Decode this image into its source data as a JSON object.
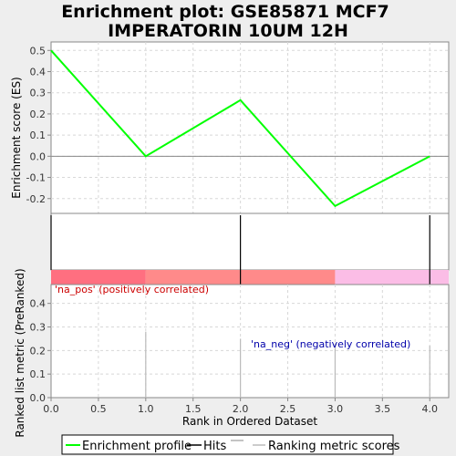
{
  "chart_data": {
    "type": "line",
    "title_lines": [
      "Enrichment plot: GSE85871 MCF7",
      "IMPERATORIN 10UM 12H"
    ],
    "xlabel": "Rank in Ordered Dataset",
    "xlim": [
      0,
      4.2
    ],
    "x_ticks": [
      0.0,
      0.5,
      1.0,
      1.5,
      2.0,
      2.5,
      3.0,
      3.5,
      4.0
    ],
    "x_tick_labels": [
      "0.0",
      "0.5",
      "1.0",
      "1.5",
      "2.0",
      "2.5",
      "3.0",
      "3.5",
      "4.0"
    ],
    "es_panel": {
      "ylabel": "Enrichment score (ES)",
      "ylim": [
        -0.27,
        0.54
      ],
      "y_ticks": [
        -0.2,
        -0.1,
        0.0,
        0.1,
        0.2,
        0.3,
        0.4,
        0.5
      ],
      "y_tick_labels": [
        "-0.2",
        "-0.1",
        "0.0",
        "0.1",
        "0.2",
        "0.3",
        "0.4",
        "0.5"
      ],
      "series": [
        {
          "name": "Enrichment profile",
          "color": "#00ff00",
          "x": [
            0,
            1,
            2,
            3,
            4
          ],
          "y": [
            0.5,
            0.0,
            0.265,
            -0.235,
            0.0
          ]
        }
      ]
    },
    "hits": {
      "x": [
        0,
        2,
        4
      ],
      "color": "#000000"
    },
    "color_bar": {
      "segments": [
        {
          "from": 0,
          "to": 1,
          "color": "#ff6f80"
        },
        {
          "from": 1,
          "to": 3,
          "color": "#ff8a8a"
        },
        {
          "from": 3,
          "to": 4.2,
          "color": "#fbbde6"
        }
      ]
    },
    "metric_panel": {
      "ylabel": "Ranked list metric (PreRanked)",
      "ylim": [
        0,
        0.48
      ],
      "y_ticks": [
        0.0,
        0.1,
        0.2,
        0.3,
        0.4
      ],
      "y_tick_labels": [
        "0.0",
        "0.1",
        "0.2",
        "0.3",
        "0.4"
      ],
      "x": [
        1,
        2,
        3,
        4
      ],
      "values": [
        0.28,
        0.25,
        0.23,
        0.22
      ],
      "color": "#bbbbbb"
    },
    "annotations": {
      "pos_label": "'na_pos' (positively correlated)",
      "pos_color": "#cc0000",
      "neg_label": "'na_neg' (negatively correlated)",
      "neg_color": "#0000aa"
    },
    "legend": [
      {
        "label": "Enrichment profile",
        "color": "#00ff00"
      },
      {
        "label": "Hits",
        "color": "#000000"
      },
      {
        "label": "Ranking metric scores",
        "color": "#bbbbbb"
      }
    ],
    "grid": true,
    "legend_position": "bottom"
  }
}
